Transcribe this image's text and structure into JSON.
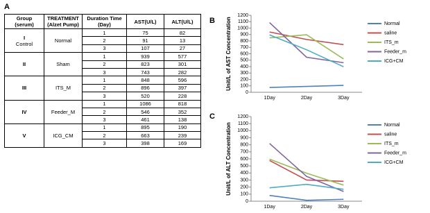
{
  "panels": [
    "A",
    "B",
    "C"
  ],
  "table": {
    "header": [
      "Group (serum)",
      "TREATMENT (Alzet Pump)",
      "Duration Time (Day)",
      "AST(U/L)",
      "ALT(U/L)"
    ],
    "groups": [
      {
        "numeral": "I",
        "name": "Control",
        "treatment": "Normal",
        "rows": [
          [
            1,
            75,
            82
          ],
          [
            2,
            91,
            13
          ],
          [
            3,
            107,
            27
          ]
        ]
      },
      {
        "numeral": "II",
        "treatment": "Sham",
        "rows": [
          [
            1,
            939,
            577
          ],
          [
            2,
            823,
            301
          ],
          [
            3,
            743,
            282
          ]
        ]
      },
      {
        "numeral": "III",
        "treatment": "ITS_M",
        "rows": [
          [
            1,
            848,
            596
          ],
          [
            2,
            896,
            397
          ],
          [
            3,
            520,
            228
          ]
        ]
      },
      {
        "numeral": "IV",
        "treatment": "Feeder_M",
        "rows": [
          [
            1,
            1086,
            818
          ],
          [
            2,
            546,
            352
          ],
          [
            3,
            461,
            138
          ]
        ]
      },
      {
        "numeral": "V",
        "treatment": "ICG_CM",
        "rows": [
          [
            1,
            895,
            190
          ],
          [
            2,
            663,
            239
          ],
          [
            3,
            398,
            169
          ]
        ]
      }
    ]
  },
  "chart_data": [
    {
      "type": "line",
      "y_label": "Unit/L of AST Concentration",
      "categories": [
        "1Day",
        "2Day",
        "3Day"
      ],
      "ylim": [
        0,
        1200
      ],
      "yticks": [
        0,
        100,
        200,
        300,
        400,
        500,
        600,
        700,
        800,
        900,
        1000,
        1100,
        1200
      ],
      "series": [
        {
          "name": "Normal",
          "color": "#4f81bd",
          "values": [
            75,
            91,
            107
          ]
        },
        {
          "name": "saline",
          "color": "#c0504d",
          "values": [
            939,
            823,
            743
          ]
        },
        {
          "name": "ITS_m",
          "color": "#9bbb59",
          "values": [
            848,
            896,
            520
          ]
        },
        {
          "name": "Feeder_m",
          "color": "#8064a2",
          "values": [
            1086,
            546,
            461
          ]
        },
        {
          "name": "ICG+CM",
          "color": "#4bacc6",
          "values": [
            895,
            663,
            398
          ]
        }
      ]
    },
    {
      "type": "line",
      "y_label": "Unit/L of ALT Concentration",
      "categories": [
        "1Day",
        "2Day",
        "3Day"
      ],
      "ylim": [
        0,
        1200
      ],
      "yticks": [
        0,
        100,
        200,
        300,
        400,
        500,
        600,
        700,
        800,
        900,
        1000,
        1100,
        1200
      ],
      "series": [
        {
          "name": "Normal",
          "color": "#4f81bd",
          "values": [
            82,
            13,
            27
          ]
        },
        {
          "name": "saline",
          "color": "#c0504d",
          "values": [
            577,
            301,
            282
          ]
        },
        {
          "name": "ITS_m",
          "color": "#9bbb59",
          "values": [
            596,
            397,
            228
          ]
        },
        {
          "name": "Feeder_m",
          "color": "#8064a2",
          "values": [
            818,
            352,
            138
          ]
        },
        {
          "name": "ICG+CM",
          "color": "#4bacc6",
          "values": [
            190,
            239,
            169
          ]
        }
      ]
    }
  ]
}
